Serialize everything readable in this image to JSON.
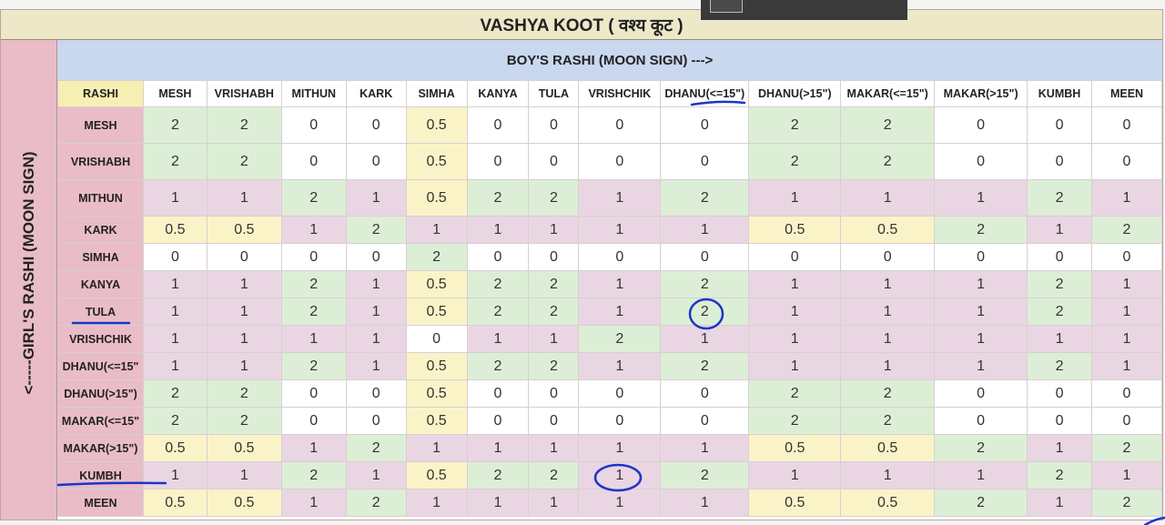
{
  "title": "VASHYA KOOT ( वश्य कूट )",
  "boy_header": "BOY'S RASHI (MOON SIGN) --->",
  "girl_header": "<-----GIRL'S RASHI (MOON SIGN)",
  "corner_label": "RASHI",
  "columns": [
    "MESH",
    "VRISHABH",
    "MITHUN",
    "KARK",
    "SIMHA",
    "KANYA",
    "TULA",
    "VRISHCHIK",
    "DHANU(<=15\")",
    "DHANU(>15\")",
    "MAKAR(<=15\")",
    "MAKAR(>15\")",
    "KUMBH",
    "MEEN"
  ],
  "rows": [
    {
      "label": "MESH",
      "values": [
        "2",
        "2",
        "0",
        "0",
        "0.5",
        "0",
        "0",
        "0",
        "0",
        "2",
        "2",
        "0",
        "0",
        "0"
      ]
    },
    {
      "label": "VRISHABH",
      "values": [
        "2",
        "2",
        "0",
        "0",
        "0.5",
        "0",
        "0",
        "0",
        "0",
        "2",
        "2",
        "0",
        "0",
        "0"
      ]
    },
    {
      "label": "MITHUN",
      "values": [
        "1",
        "1",
        "2",
        "1",
        "0.5",
        "2",
        "2",
        "1",
        "2",
        "1",
        "1",
        "1",
        "2",
        "1"
      ]
    },
    {
      "label": "KARK",
      "values": [
        "0.5",
        "0.5",
        "1",
        "2",
        "1",
        "1",
        "1",
        "1",
        "1",
        "0.5",
        "0.5",
        "2",
        "1",
        "2"
      ]
    },
    {
      "label": "SIMHA",
      "values": [
        "0",
        "0",
        "0",
        "0",
        "2",
        "0",
        "0",
        "0",
        "0",
        "0",
        "0",
        "0",
        "0",
        "0"
      ]
    },
    {
      "label": "KANYA",
      "values": [
        "1",
        "1",
        "2",
        "1",
        "0.5",
        "2",
        "2",
        "1",
        "2",
        "1",
        "1",
        "1",
        "2",
        "1"
      ]
    },
    {
      "label": "TULA",
      "values": [
        "1",
        "1",
        "2",
        "1",
        "0.5",
        "2",
        "2",
        "1",
        "2",
        "1",
        "1",
        "1",
        "2",
        "1"
      ]
    },
    {
      "label": "VRISHCHIK",
      "values": [
        "1",
        "1",
        "1",
        "1",
        "0",
        "1",
        "1",
        "2",
        "1",
        "1",
        "1",
        "1",
        "1",
        "1"
      ]
    },
    {
      "label": "DHANU(<=15\"",
      "values": [
        "1",
        "1",
        "2",
        "1",
        "0.5",
        "2",
        "2",
        "1",
        "2",
        "1",
        "1",
        "1",
        "2",
        "1"
      ]
    },
    {
      "label": "DHANU(>15\")",
      "values": [
        "2",
        "2",
        "0",
        "0",
        "0.5",
        "0",
        "0",
        "0",
        "0",
        "2",
        "2",
        "0",
        "0",
        "0"
      ]
    },
    {
      "label": "MAKAR(<=15\"",
      "values": [
        "2",
        "2",
        "0",
        "0",
        "0.5",
        "0",
        "0",
        "0",
        "0",
        "2",
        "2",
        "0",
        "0",
        "0"
      ]
    },
    {
      "label": "MAKAR(>15\")",
      "values": [
        "0.5",
        "0.5",
        "1",
        "2",
        "1",
        "1",
        "1",
        "1",
        "1",
        "0.5",
        "0.5",
        "2",
        "1",
        "2"
      ]
    },
    {
      "label": "KUMBH",
      "values": [
        "1",
        "1",
        "2",
        "1",
        "0.5",
        "2",
        "2",
        "1",
        "2",
        "1",
        "1",
        "1",
        "2",
        "1"
      ]
    },
    {
      "label": "MEEN",
      "values": [
        "0.5",
        "0.5",
        "1",
        "2",
        "1",
        "1",
        "1",
        "1",
        "1",
        "0.5",
        "0.5",
        "2",
        "1",
        "2"
      ]
    }
  ],
  "annotation_color": "#1d35c8"
}
